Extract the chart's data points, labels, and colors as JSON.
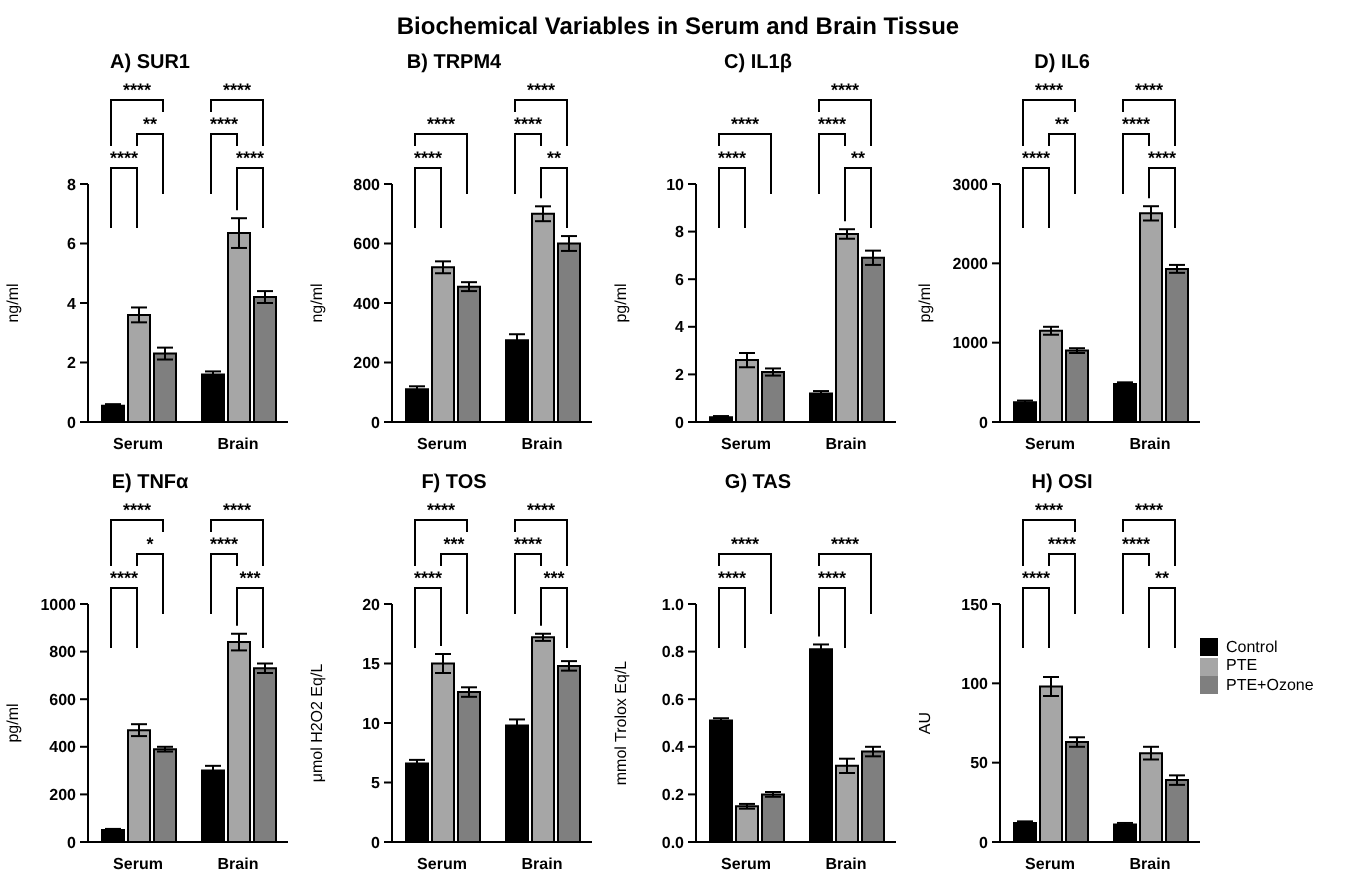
{
  "chart_data": [
    {
      "type": "other",
      "title": "Biochemical Variables in Serum and Brain Tissue"
    },
    {
      "type": "bar",
      "title": "A) SUR1",
      "ylabel": "ng/ml",
      "categories": [
        "Serum",
        "Brain"
      ],
      "ylim": [
        0,
        8
      ],
      "yticks": [
        0,
        2,
        4,
        6,
        8
      ],
      "series": [
        {
          "color": "#000000",
          "values": [
            0.55,
            1.6
          ],
          "errors": [
            0.05,
            0.1
          ]
        },
        {
          "color": "#a6a6a6",
          "values": [
            3.6,
            6.35
          ],
          "errors": [
            0.25,
            0.5
          ]
        },
        {
          "color": "#7f7f7f",
          "values": [
            2.3,
            4.2
          ],
          "errors": [
            0.2,
            0.2
          ]
        }
      ],
      "annotations": [
        "****",
        "**",
        "****",
        "****",
        "****",
        "****"
      ]
    },
    {
      "type": "bar",
      "title": "B) TRPM4",
      "ylabel": "ng/ml",
      "categories": [
        "Serum",
        "Brain"
      ],
      "ylim": [
        0,
        800
      ],
      "yticks": [
        0,
        200,
        400,
        600,
        800
      ],
      "series": [
        {
          "color": "#000000",
          "values": [
            110,
            275
          ],
          "errors": [
            10,
            20
          ]
        },
        {
          "color": "#a6a6a6",
          "values": [
            520,
            700
          ],
          "errors": [
            20,
            25
          ]
        },
        {
          "color": "#7f7f7f",
          "values": [
            455,
            600
          ],
          "errors": [
            15,
            25
          ]
        }
      ],
      "annotations": [
        "****",
        "****",
        "****",
        "**",
        "****"
      ]
    },
    {
      "type": "bar",
      "title": "C) IL1β",
      "ylabel": "pg/ml",
      "categories": [
        "Serum",
        "Brain"
      ],
      "ylim": [
        0,
        10
      ],
      "yticks": [
        0,
        2,
        4,
        6,
        8,
        10
      ],
      "series": [
        {
          "color": "#000000",
          "values": [
            0.2,
            1.2
          ],
          "errors": [
            0.05,
            0.1
          ]
        },
        {
          "color": "#a6a6a6",
          "values": [
            2.6,
            7.9
          ],
          "errors": [
            0.3,
            0.2
          ]
        },
        {
          "color": "#7f7f7f",
          "values": [
            2.1,
            6.9
          ],
          "errors": [
            0.15,
            0.3
          ]
        }
      ],
      "annotations": [
        "****",
        "****",
        "****",
        "**",
        "****"
      ]
    },
    {
      "type": "bar",
      "title": "D) IL6",
      "ylabel": "pg/ml",
      "categories": [
        "Serum",
        "Brain"
      ],
      "ylim": [
        0,
        3000
      ],
      "yticks": [
        0,
        1000,
        2000,
        3000
      ],
      "series": [
        {
          "color": "#000000",
          "values": [
            250,
            480
          ],
          "errors": [
            20,
            20
          ]
        },
        {
          "color": "#a6a6a6",
          "values": [
            1150,
            2630
          ],
          "errors": [
            50,
            90
          ]
        },
        {
          "color": "#7f7f7f",
          "values": [
            900,
            1930
          ],
          "errors": [
            30,
            50
          ]
        }
      ],
      "annotations": [
        "****",
        "**",
        "****",
        "****",
        "****",
        "****"
      ]
    },
    {
      "type": "bar",
      "title": "E) TNFα",
      "ylabel": "pg/ml",
      "categories": [
        "Serum",
        "Brain"
      ],
      "ylim": [
        0,
        1000
      ],
      "yticks": [
        0,
        200,
        400,
        600,
        800,
        1000
      ],
      "series": [
        {
          "color": "#000000",
          "values": [
            50,
            300
          ],
          "errors": [
            5,
            20
          ]
        },
        {
          "color": "#a6a6a6",
          "values": [
            470,
            840
          ],
          "errors": [
            25,
            35
          ]
        },
        {
          "color": "#7f7f7f",
          "values": [
            390,
            730
          ],
          "errors": [
            10,
            20
          ]
        }
      ],
      "annotations": [
        "****",
        "*",
        "****",
        "****",
        "***",
        "****"
      ]
    },
    {
      "type": "bar",
      "title": "F) TOS",
      "ylabel": "μmol H2O2 Eq/L",
      "categories": [
        "Serum",
        "Brain"
      ],
      "ylim": [
        0,
        20
      ],
      "yticks": [
        0,
        5,
        10,
        15,
        20
      ],
      "series": [
        {
          "color": "#000000",
          "values": [
            6.6,
            9.8
          ],
          "errors": [
            0.3,
            0.5
          ]
        },
        {
          "color": "#a6a6a6",
          "values": [
            15.0,
            17.2
          ],
          "errors": [
            0.8,
            0.3
          ]
        },
        {
          "color": "#7f7f7f",
          "values": [
            12.6,
            14.8
          ],
          "errors": [
            0.4,
            0.4
          ]
        }
      ],
      "annotations": [
        "****",
        "***",
        "****",
        "****",
        "***",
        "****"
      ]
    },
    {
      "type": "bar",
      "title": "G) TAS",
      "ylabel": "mmol Trolox Eq/L",
      "categories": [
        "Serum",
        "Brain"
      ],
      "ylim": [
        0,
        1
      ],
      "yticks": [
        {
          "value": 0,
          "label": "0.0"
        },
        0.2,
        0.4,
        0.6,
        0.8,
        {
          "value": 1,
          "label": "1.0"
        }
      ],
      "series": [
        {
          "color": "#000000",
          "values": [
            0.51,
            0.81
          ],
          "errors": [
            0.01,
            0.02
          ]
        },
        {
          "color": "#a6a6a6",
          "values": [
            0.15,
            0.32
          ],
          "errors": [
            0.01,
            0.03
          ]
        },
        {
          "color": "#7f7f7f",
          "values": [
            0.2,
            0.38
          ],
          "errors": [
            0.01,
            0.02
          ]
        }
      ],
      "annotations": [
        "****",
        "****",
        "****",
        "****"
      ]
    },
    {
      "type": "bar",
      "title": "H) OSI",
      "ylabel": "AU",
      "categories": [
        "Serum",
        "Brain"
      ],
      "ylim": [
        0,
        150
      ],
      "yticks": [
        0,
        50,
        100,
        150
      ],
      "legend": "right",
      "series": [
        {
          "name": "Control",
          "color": "#000000",
          "values": [
            12,
            11
          ],
          "errors": [
            1,
            1
          ]
        },
        {
          "name": "PTE",
          "color": "#a6a6a6",
          "values": [
            98,
            56
          ],
          "errors": [
            6,
            4
          ]
        },
        {
          "name": "PTE+Ozone",
          "color": "#7f7f7f",
          "values": [
            63,
            39
          ],
          "errors": [
            3,
            3
          ]
        }
      ],
      "annotations": [
        "****",
        "****",
        "****",
        "****",
        "**",
        "****"
      ]
    }
  ]
}
